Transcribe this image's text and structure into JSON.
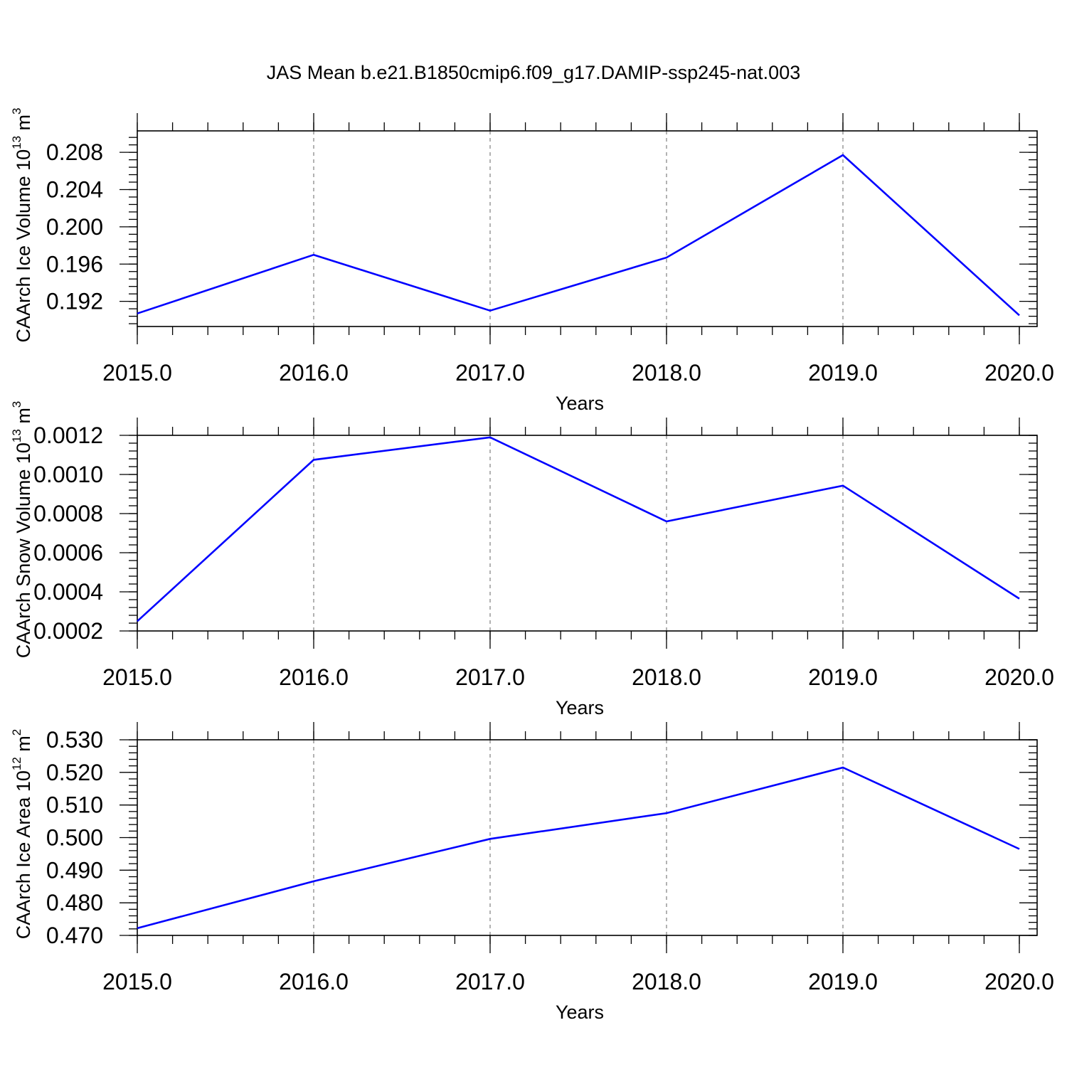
{
  "chart_data": [
    {
      "type": "line",
      "title": "JAS Mean b.e21.B1850cmip6.f09_g17.DAMIP-ssp245-nat.003",
      "xlabel": "Years",
      "ylabel": "CAArch Ice Volume 10",
      "ylabel_exp": "13",
      "ylabel_unit": "m",
      "ylabel_unit_exp": "3",
      "x": [
        2015,
        2016,
        2017,
        2018,
        2019,
        2020
      ],
      "x_tick_labels": [
        "2015.0",
        "2016.0",
        "2017.0",
        "2018.0",
        "2019.0",
        "2020.0"
      ],
      "xlim": [
        2015,
        2020
      ],
      "y_ticks": [
        0.192,
        0.196,
        0.2,
        0.204,
        0.208
      ],
      "y_tick_labels": [
        "0.192",
        "0.196",
        "0.200",
        "0.204",
        "0.208"
      ],
      "ylim": [
        0.1893,
        0.2103
      ],
      "y_minor_step": 0.0008,
      "grid": "x-dashed",
      "series": [
        {
          "name": "CAArch Ice Volume",
          "color": "#0000ff",
          "values": [
            0.1907,
            0.197,
            0.191,
            0.1967,
            0.2077,
            0.1905
          ]
        }
      ]
    },
    {
      "type": "line",
      "title": "",
      "xlabel": "Years",
      "ylabel": "CAArch Snow Volume 10",
      "ylabel_exp": "13",
      "ylabel_unit": "m",
      "ylabel_unit_exp": "3",
      "x": [
        2015,
        2016,
        2017,
        2018,
        2019,
        2020
      ],
      "x_tick_labels": [
        "2015.0",
        "2016.0",
        "2017.0",
        "2018.0",
        "2019.0",
        "2020.0"
      ],
      "xlim": [
        2015,
        2020
      ],
      "y_ticks": [
        0.0002,
        0.0004,
        0.0006,
        0.0008,
        0.001,
        0.0012
      ],
      "y_tick_labels": [
        "0.0002",
        "0.0004",
        "0.0006",
        "0.0008",
        "0.0010",
        "0.0012"
      ],
      "ylim": [
        0.0002,
        0.0012
      ],
      "y_minor_step": 4e-05,
      "grid": "x-dashed",
      "series": [
        {
          "name": "CAArch Snow Volume",
          "color": "#0000ff",
          "values": [
            0.00025,
            0.001075,
            0.00119,
            0.00076,
            0.000943,
            0.000365
          ]
        }
      ]
    },
    {
      "type": "line",
      "title": "",
      "xlabel": "Years",
      "ylabel": "CAArch Ice Area 10",
      "ylabel_exp": "12",
      "ylabel_unit": "m",
      "ylabel_unit_exp": "2",
      "x": [
        2015,
        2016,
        2017,
        2018,
        2019,
        2020
      ],
      "x_tick_labels": [
        "2015.0",
        "2016.0",
        "2017.0",
        "2018.0",
        "2019.0",
        "2020.0"
      ],
      "xlim": [
        2015,
        2020
      ],
      "y_ticks": [
        0.47,
        0.48,
        0.49,
        0.5,
        0.51,
        0.52,
        0.53
      ],
      "y_tick_labels": [
        "0.470",
        "0.480",
        "0.490",
        "0.500",
        "0.510",
        "0.520",
        "0.530"
      ],
      "ylim": [
        0.47,
        0.53
      ],
      "y_minor_step": 0.002,
      "grid": "x-dashed",
      "series": [
        {
          "name": "CAArch Ice Area",
          "color": "#0000ff",
          "values": [
            0.4722,
            0.4866,
            0.4996,
            0.5075,
            0.5215,
            0.4965
          ]
        }
      ]
    }
  ]
}
